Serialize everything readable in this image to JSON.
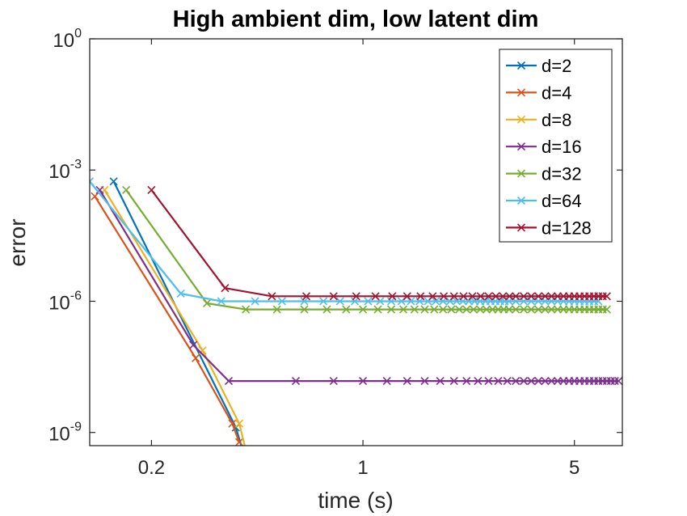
{
  "chart_data": {
    "type": "line",
    "title": "High ambient dim, low latent dim",
    "xlabel": "time (s)",
    "ylabel": "error",
    "xscale": "log",
    "yscale": "log",
    "xlim": [
      0.125,
      7.2
    ],
    "ylim": [
      5e-10,
      1
    ],
    "xticks": [
      {
        "value": 0.2,
        "label": "0.2"
      },
      {
        "value": 1,
        "label": "1"
      },
      {
        "value": 5,
        "label": "5"
      }
    ],
    "yticks": [
      {
        "value": 1,
        "base": "10",
        "exp": "0"
      },
      {
        "value": 0.001,
        "base": "10",
        "exp": "-3"
      },
      {
        "value": 1e-06,
        "base": "10",
        "exp": "-6"
      },
      {
        "value": 1e-09,
        "base": "10",
        "exp": "-9"
      }
    ],
    "grid": false,
    "legend_position": "top-right",
    "series": [
      {
        "name": "d=2",
        "color": "#0072BD",
        "x": [
          0.15,
          0.38,
          0.4,
          0.4
        ],
        "y": [
          0.00055,
          1.3e-09,
          4e-10,
          4e-10
        ]
      },
      {
        "name": "d=4",
        "color": "#D95319",
        "x": [
          0.13,
          0.28,
          0.37,
          0.39
        ],
        "y": [
          0.00025,
          5e-08,
          1.6e-09,
          6e-10
        ]
      },
      {
        "name": "d=8",
        "color": "#EDB120",
        "x": [
          0.14,
          0.295,
          0.39,
          0.41
        ],
        "y": [
          0.00035,
          7.5e-08,
          1.6e-09,
          4e-10
        ]
      },
      {
        "name": "d=16",
        "color": "#7E2F8E",
        "x": [
          0.135,
          0.275,
          0.36,
          0.6,
          0.8,
          1.0,
          1.2,
          1.4,
          1.6,
          1.8,
          2.0,
          2.2,
          2.4,
          2.6,
          2.8,
          3.0,
          3.2,
          3.4,
          3.6,
          3.8,
          4.0,
          4.2,
          4.4,
          4.6,
          4.8,
          5.0,
          5.2,
          5.4,
          5.6,
          5.8,
          6.0,
          6.2,
          6.4,
          6.6,
          6.8,
          7.0
        ],
        "y": [
          0.00035,
          1e-07,
          1.5e-08,
          1.5e-08,
          1.5e-08,
          1.5e-08,
          1.5e-08,
          1.5e-08,
          1.5e-08,
          1.5e-08,
          1.5e-08,
          1.5e-08,
          1.5e-08,
          1.5e-08,
          1.5e-08,
          1.5e-08,
          1.5e-08,
          1.5e-08,
          1.5e-08,
          1.5e-08,
          1.5e-08,
          1.5e-08,
          1.5e-08,
          1.5e-08,
          1.5e-08,
          1.5e-08,
          1.5e-08,
          1.5e-08,
          1.5e-08,
          1.5e-08,
          1.5e-08,
          1.5e-08,
          1.5e-08,
          1.5e-08,
          1.5e-08,
          1.5e-08
        ]
      },
      {
        "name": "d=32",
        "color": "#77AC30",
        "x": [
          0.165,
          0.305,
          0.41,
          0.52,
          0.64,
          0.76,
          0.88,
          1.0,
          1.12,
          1.24,
          1.36,
          1.48,
          1.6,
          1.72,
          1.84,
          1.96,
          2.08,
          2.2,
          2.32,
          2.44,
          2.56,
          2.68,
          2.8,
          2.92,
          3.04,
          3.2,
          3.4,
          3.6,
          3.8,
          4.0,
          4.2,
          4.4,
          4.6,
          4.8,
          5.0,
          5.2,
          5.4,
          5.6,
          5.8,
          6.0,
          6.2,
          6.4
        ],
        "y": [
          0.00035,
          9e-07,
          6.5e-07,
          6.5e-07,
          6.5e-07,
          6.5e-07,
          6.5e-07,
          6.5e-07,
          6.5e-07,
          6.5e-07,
          6.5e-07,
          6.5e-07,
          6.5e-07,
          6.5e-07,
          6.5e-07,
          6.5e-07,
          6.5e-07,
          6.5e-07,
          6.5e-07,
          6.5e-07,
          6.5e-07,
          6.5e-07,
          6.5e-07,
          6.5e-07,
          6.5e-07,
          6.5e-07,
          6.5e-07,
          6.5e-07,
          6.5e-07,
          6.5e-07,
          6.5e-07,
          6.5e-07,
          6.5e-07,
          6.5e-07,
          6.5e-07,
          6.5e-07,
          6.5e-07,
          6.5e-07,
          6.5e-07,
          6.5e-07,
          6.5e-07,
          6.5e-07
        ]
      },
      {
        "name": "d=64",
        "color": "#4DBEEE",
        "x": [
          0.125,
          0.25,
          0.34,
          0.44,
          0.54,
          0.64,
          0.74,
          0.84,
          0.94,
          1.04,
          1.14,
          1.24,
          1.34,
          1.44,
          1.54,
          1.64,
          1.74,
          1.84,
          1.94,
          2.04,
          2.14,
          2.24,
          2.34,
          2.44,
          2.54,
          2.64,
          2.74,
          2.84,
          2.94,
          3.04,
          3.2,
          3.4,
          3.6,
          3.8,
          4.0,
          4.2,
          4.4,
          4.6,
          4.8,
          5.0,
          5.2,
          5.4,
          5.6,
          5.8,
          6.0
        ],
        "y": [
          0.00055,
          1.5e-06,
          1e-06,
          1e-06,
          1e-06,
          1e-06,
          1e-06,
          1e-06,
          1e-06,
          1e-06,
          1e-06,
          1e-06,
          1e-06,
          1e-06,
          1e-06,
          1e-06,
          1e-06,
          1e-06,
          1e-06,
          1e-06,
          1e-06,
          1e-06,
          1e-06,
          1e-06,
          1e-06,
          1e-06,
          1e-06,
          1e-06,
          1e-06,
          1e-06,
          1e-06,
          1e-06,
          1e-06,
          1e-06,
          1e-06,
          1e-06,
          1e-06,
          1e-06,
          1e-06,
          1e-06,
          1e-06,
          1e-06,
          1e-06,
          1e-06,
          1e-06
        ]
      },
      {
        "name": "d=128",
        "color": "#A2142F",
        "x": [
          0.2,
          0.35,
          0.5,
          0.65,
          0.8,
          0.95,
          1.1,
          1.25,
          1.4,
          1.55,
          1.7,
          1.85,
          2.0,
          2.15,
          2.3,
          2.45,
          2.6,
          2.75,
          2.9,
          3.05,
          3.2,
          3.4,
          3.6,
          3.8,
          4.0,
          4.2,
          4.4,
          4.6,
          4.8,
          5.0,
          5.2,
          5.4,
          5.6,
          5.8,
          6.0,
          6.2,
          6.4
        ],
        "y": [
          0.00035,
          2e-06,
          1.3e-06,
          1.3e-06,
          1.3e-06,
          1.3e-06,
          1.3e-06,
          1.3e-06,
          1.3e-06,
          1.3e-06,
          1.3e-06,
          1.3e-06,
          1.3e-06,
          1.3e-06,
          1.3e-06,
          1.3e-06,
          1.3e-06,
          1.3e-06,
          1.3e-06,
          1.3e-06,
          1.3e-06,
          1.3e-06,
          1.3e-06,
          1.3e-06,
          1.3e-06,
          1.3e-06,
          1.3e-06,
          1.3e-06,
          1.3e-06,
          1.3e-06,
          1.3e-06,
          1.3e-06,
          1.3e-06,
          1.3e-06,
          1.3e-06,
          1.3e-06,
          1.3e-06
        ]
      }
    ]
  }
}
